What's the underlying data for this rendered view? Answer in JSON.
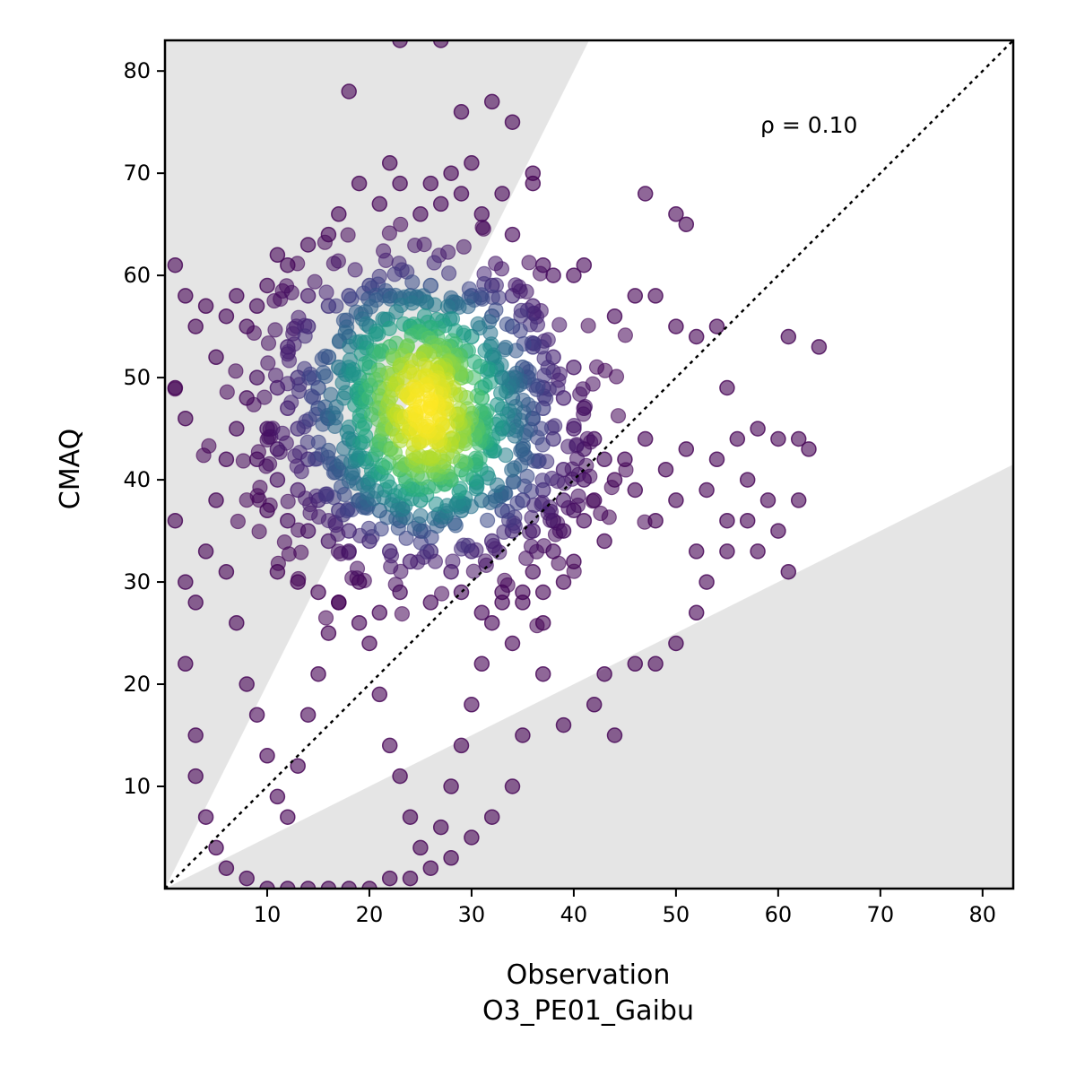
{
  "chart_data": {
    "type": "scatter",
    "title": "",
    "xlabel": "Observation",
    "xlabel_sub": "O3_PE01_Gaibu",
    "ylabel": "CMAQ",
    "xlim": [
      0,
      83
    ],
    "ylim": [
      0,
      83
    ],
    "xticks": [
      10,
      20,
      30,
      40,
      50,
      60,
      70,
      80
    ],
    "yticks": [
      10,
      20,
      30,
      40,
      50,
      60,
      70,
      80
    ],
    "xtick_labels": [
      "10",
      "20",
      "30",
      "40",
      "50",
      "60",
      "70",
      "80"
    ],
    "ytick_labels": [
      "10",
      "20",
      "30",
      "40",
      "50",
      "60",
      "70",
      "80"
    ],
    "grid": false,
    "annotation": "ρ = 0.10",
    "reference_line": {
      "style": "dotted",
      "color": "#000000",
      "slope": 1
    },
    "shaded_regions": {
      "color": "#e5e5e5",
      "upper_slope": 2.0,
      "lower_slope": 0.5
    },
    "colormap": "viridis",
    "density_clusters": [
      {
        "x": 25,
        "y": 52,
        "weight": 0.3
      },
      {
        "x": 26,
        "y": 42,
        "weight": 0.4
      }
    ],
    "points": [
      [
        1,
        61
      ],
      [
        2,
        58
      ],
      [
        2,
        46
      ],
      [
        3,
        55
      ],
      [
        4,
        57
      ],
      [
        5,
        52
      ],
      [
        6,
        56
      ],
      [
        7,
        58
      ],
      [
        8,
        55
      ],
      [
        9,
        57
      ],
      [
        10,
        59
      ],
      [
        11,
        62
      ],
      [
        12,
        61
      ],
      [
        14,
        63
      ],
      [
        16,
        64
      ],
      [
        17,
        66
      ],
      [
        19,
        69
      ],
      [
        21,
        67
      ],
      [
        22,
        71
      ],
      [
        23,
        69
      ],
      [
        25,
        66
      ],
      [
        26,
        69
      ],
      [
        27,
        67
      ],
      [
        28,
        70
      ],
      [
        29,
        68
      ],
      [
        30,
        71
      ],
      [
        31,
        66
      ],
      [
        33,
        68
      ],
      [
        34,
        64
      ],
      [
        36,
        69
      ],
      [
        37,
        61
      ],
      [
        38,
        60
      ],
      [
        40,
        60
      ],
      [
        41,
        61
      ],
      [
        44,
        56
      ],
      [
        46,
        58
      ],
      [
        47,
        68
      ],
      [
        48,
        58
      ],
      [
        50,
        66
      ],
      [
        51,
        65
      ],
      [
        50,
        55
      ],
      [
        52,
        54
      ],
      [
        54,
        55
      ],
      [
        55,
        49
      ],
      [
        58,
        45
      ],
      [
        60,
        44
      ],
      [
        61,
        54
      ],
      [
        62,
        44
      ],
      [
        64,
        53
      ],
      [
        63,
        43
      ],
      [
        62,
        38
      ],
      [
        61,
        31
      ],
      [
        60,
        35
      ],
      [
        59,
        38
      ],
      [
        57,
        36
      ],
      [
        55,
        33
      ],
      [
        53,
        30
      ],
      [
        52,
        27
      ],
      [
        50,
        24
      ],
      [
        48,
        22
      ],
      [
        46,
        22
      ],
      [
        43,
        21
      ],
      [
        42,
        18
      ],
      [
        44,
        15
      ],
      [
        39,
        16
      ],
      [
        37,
        21
      ],
      [
        35,
        15
      ],
      [
        34,
        10
      ],
      [
        32,
        7
      ],
      [
        30,
        5
      ],
      [
        28,
        3
      ],
      [
        26,
        2
      ],
      [
        24,
        1
      ],
      [
        22,
        1
      ],
      [
        20,
        0
      ],
      [
        18,
        0
      ],
      [
        16,
        0
      ],
      [
        14,
        0
      ],
      [
        12,
        0
      ],
      [
        10,
        0
      ],
      [
        8,
        1
      ],
      [
        6,
        2
      ],
      [
        5,
        4
      ],
      [
        4,
        7
      ],
      [
        3,
        11
      ],
      [
        3,
        15
      ],
      [
        2,
        22
      ],
      [
        2,
        30
      ],
      [
        1,
        36
      ],
      [
        1,
        49
      ],
      [
        3,
        28
      ],
      [
        4,
        33
      ],
      [
        5,
        38
      ],
      [
        6,
        42
      ],
      [
        7,
        45
      ],
      [
        8,
        48
      ],
      [
        9,
        50
      ],
      [
        6,
        31
      ],
      [
        7,
        26
      ],
      [
        8,
        20
      ],
      [
        9,
        17
      ],
      [
        10,
        13
      ],
      [
        11,
        9
      ],
      [
        12,
        7
      ],
      [
        13,
        12
      ],
      [
        14,
        17
      ],
      [
        15,
        21
      ],
      [
        16,
        25
      ],
      [
        17,
        28
      ],
      [
        18,
        33
      ],
      [
        19,
        30
      ],
      [
        20,
        24
      ],
      [
        21,
        19
      ],
      [
        22,
        14
      ],
      [
        23,
        11
      ],
      [
        24,
        7
      ],
      [
        25,
        4
      ],
      [
        27,
        6
      ],
      [
        28,
        10
      ],
      [
        29,
        14
      ],
      [
        30,
        18
      ],
      [
        31,
        22
      ],
      [
        32,
        26
      ],
      [
        33,
        29
      ],
      [
        34,
        24
      ],
      [
        35,
        28
      ],
      [
        36,
        31
      ],
      [
        37,
        26
      ],
      [
        38,
        33
      ],
      [
        39,
        35
      ],
      [
        40,
        32
      ],
      [
        41,
        36
      ],
      [
        42,
        38
      ],
      [
        43,
        34
      ],
      [
        44,
        40
      ],
      [
        45,
        42
      ],
      [
        46,
        39
      ],
      [
        47,
        44
      ],
      [
        48,
        36
      ],
      [
        49,
        41
      ],
      [
        50,
        38
      ],
      [
        51,
        43
      ],
      [
        52,
        33
      ],
      [
        53,
        39
      ],
      [
        54,
        42
      ],
      [
        55,
        36
      ],
      [
        56,
        44
      ],
      [
        57,
        40
      ],
      [
        58,
        33
      ],
      [
        18,
        78
      ],
      [
        27,
        83
      ],
      [
        23,
        83
      ],
      [
        29,
        76
      ],
      [
        32,
        77
      ],
      [
        34,
        75
      ],
      [
        36,
        70
      ],
      [
        26,
        47
      ],
      [
        24,
        45
      ],
      [
        27,
        40
      ],
      [
        23,
        41
      ],
      [
        28,
        44
      ],
      [
        25,
        38
      ],
      [
        22,
        43
      ],
      [
        29,
        41
      ],
      [
        30,
        46
      ],
      [
        21,
        47
      ],
      [
        31,
        49
      ],
      [
        20,
        51
      ],
      [
        32,
        52
      ],
      [
        19,
        48
      ],
      [
        33,
        45
      ],
      [
        18,
        44
      ],
      [
        34,
        48
      ],
      [
        17,
        41
      ],
      [
        35,
        43
      ],
      [
        16,
        46
      ],
      [
        36,
        46
      ],
      [
        15,
        49
      ],
      [
        37,
        49
      ],
      [
        14,
        42
      ],
      [
        38,
        44
      ],
      [
        13,
        45
      ],
      [
        39,
        41
      ],
      [
        12,
        47
      ],
      [
        40,
        45
      ],
      [
        11,
        43
      ],
      [
        41,
        43
      ],
      [
        24,
        55
      ],
      [
        26,
        54
      ],
      [
        28,
        53
      ],
      [
        22,
        53
      ],
      [
        30,
        54
      ],
      [
        20,
        55
      ],
      [
        32,
        56
      ],
      [
        18,
        54
      ],
      [
        34,
        55
      ],
      [
        16,
        52
      ],
      [
        36,
        53
      ],
      [
        14,
        55
      ],
      [
        38,
        52
      ],
      [
        12,
        53
      ],
      [
        40,
        51
      ],
      [
        25,
        50
      ],
      [
        27,
        51
      ],
      [
        23,
        51
      ],
      [
        29,
        50
      ],
      [
        21,
        49
      ],
      [
        31,
        48
      ],
      [
        19,
        50
      ],
      [
        33,
        50
      ],
      [
        17,
        51
      ],
      [
        35,
        51
      ],
      [
        15,
        47
      ],
      [
        37,
        47
      ],
      [
        13,
        50
      ],
      [
        39,
        48
      ],
      [
        11,
        49
      ],
      [
        41,
        47
      ],
      [
        10,
        45
      ],
      [
        42,
        44
      ],
      [
        9,
        42
      ],
      [
        43,
        42
      ],
      [
        25,
        35
      ],
      [
        27,
        36
      ],
      [
        23,
        36
      ],
      [
        29,
        37
      ],
      [
        21,
        37
      ],
      [
        31,
        38
      ],
      [
        19,
        38
      ],
      [
        33,
        37
      ],
      [
        17,
        37
      ],
      [
        35,
        38
      ],
      [
        15,
        38
      ],
      [
        37,
        39
      ],
      [
        13,
        39
      ],
      [
        39,
        38
      ],
      [
        11,
        40
      ],
      [
        41,
        40
      ],
      [
        24,
        32
      ],
      [
        26,
        33
      ],
      [
        22,
        33
      ],
      [
        28,
        31
      ],
      [
        20,
        34
      ],
      [
        30,
        33
      ],
      [
        18,
        35
      ],
      [
        32,
        34
      ],
      [
        16,
        34
      ],
      [
        34,
        35
      ],
      [
        14,
        35
      ],
      [
        36,
        35
      ],
      [
        12,
        36
      ],
      [
        38,
        36
      ],
      [
        10,
        37
      ],
      [
        40,
        37
      ],
      [
        24,
        58
      ],
      [
        26,
        59
      ],
      [
        22,
        58
      ],
      [
        28,
        57
      ],
      [
        20,
        59
      ],
      [
        30,
        58
      ],
      [
        18,
        58
      ],
      [
        32,
        59
      ],
      [
        16,
        57
      ],
      [
        34,
        58
      ],
      [
        14,
        58
      ],
      [
        36,
        57
      ],
      [
        23,
        29
      ],
      [
        26,
        28
      ],
      [
        21,
        27
      ],
      [
        29,
        29
      ],
      [
        19,
        26
      ],
      [
        31,
        27
      ],
      [
        17,
        28
      ],
      [
        33,
        28
      ],
      [
        15,
        29
      ],
      [
        35,
        29
      ],
      [
        13,
        30
      ],
      [
        37,
        29
      ],
      [
        11,
        31
      ],
      [
        39,
        30
      ]
    ]
  }
}
